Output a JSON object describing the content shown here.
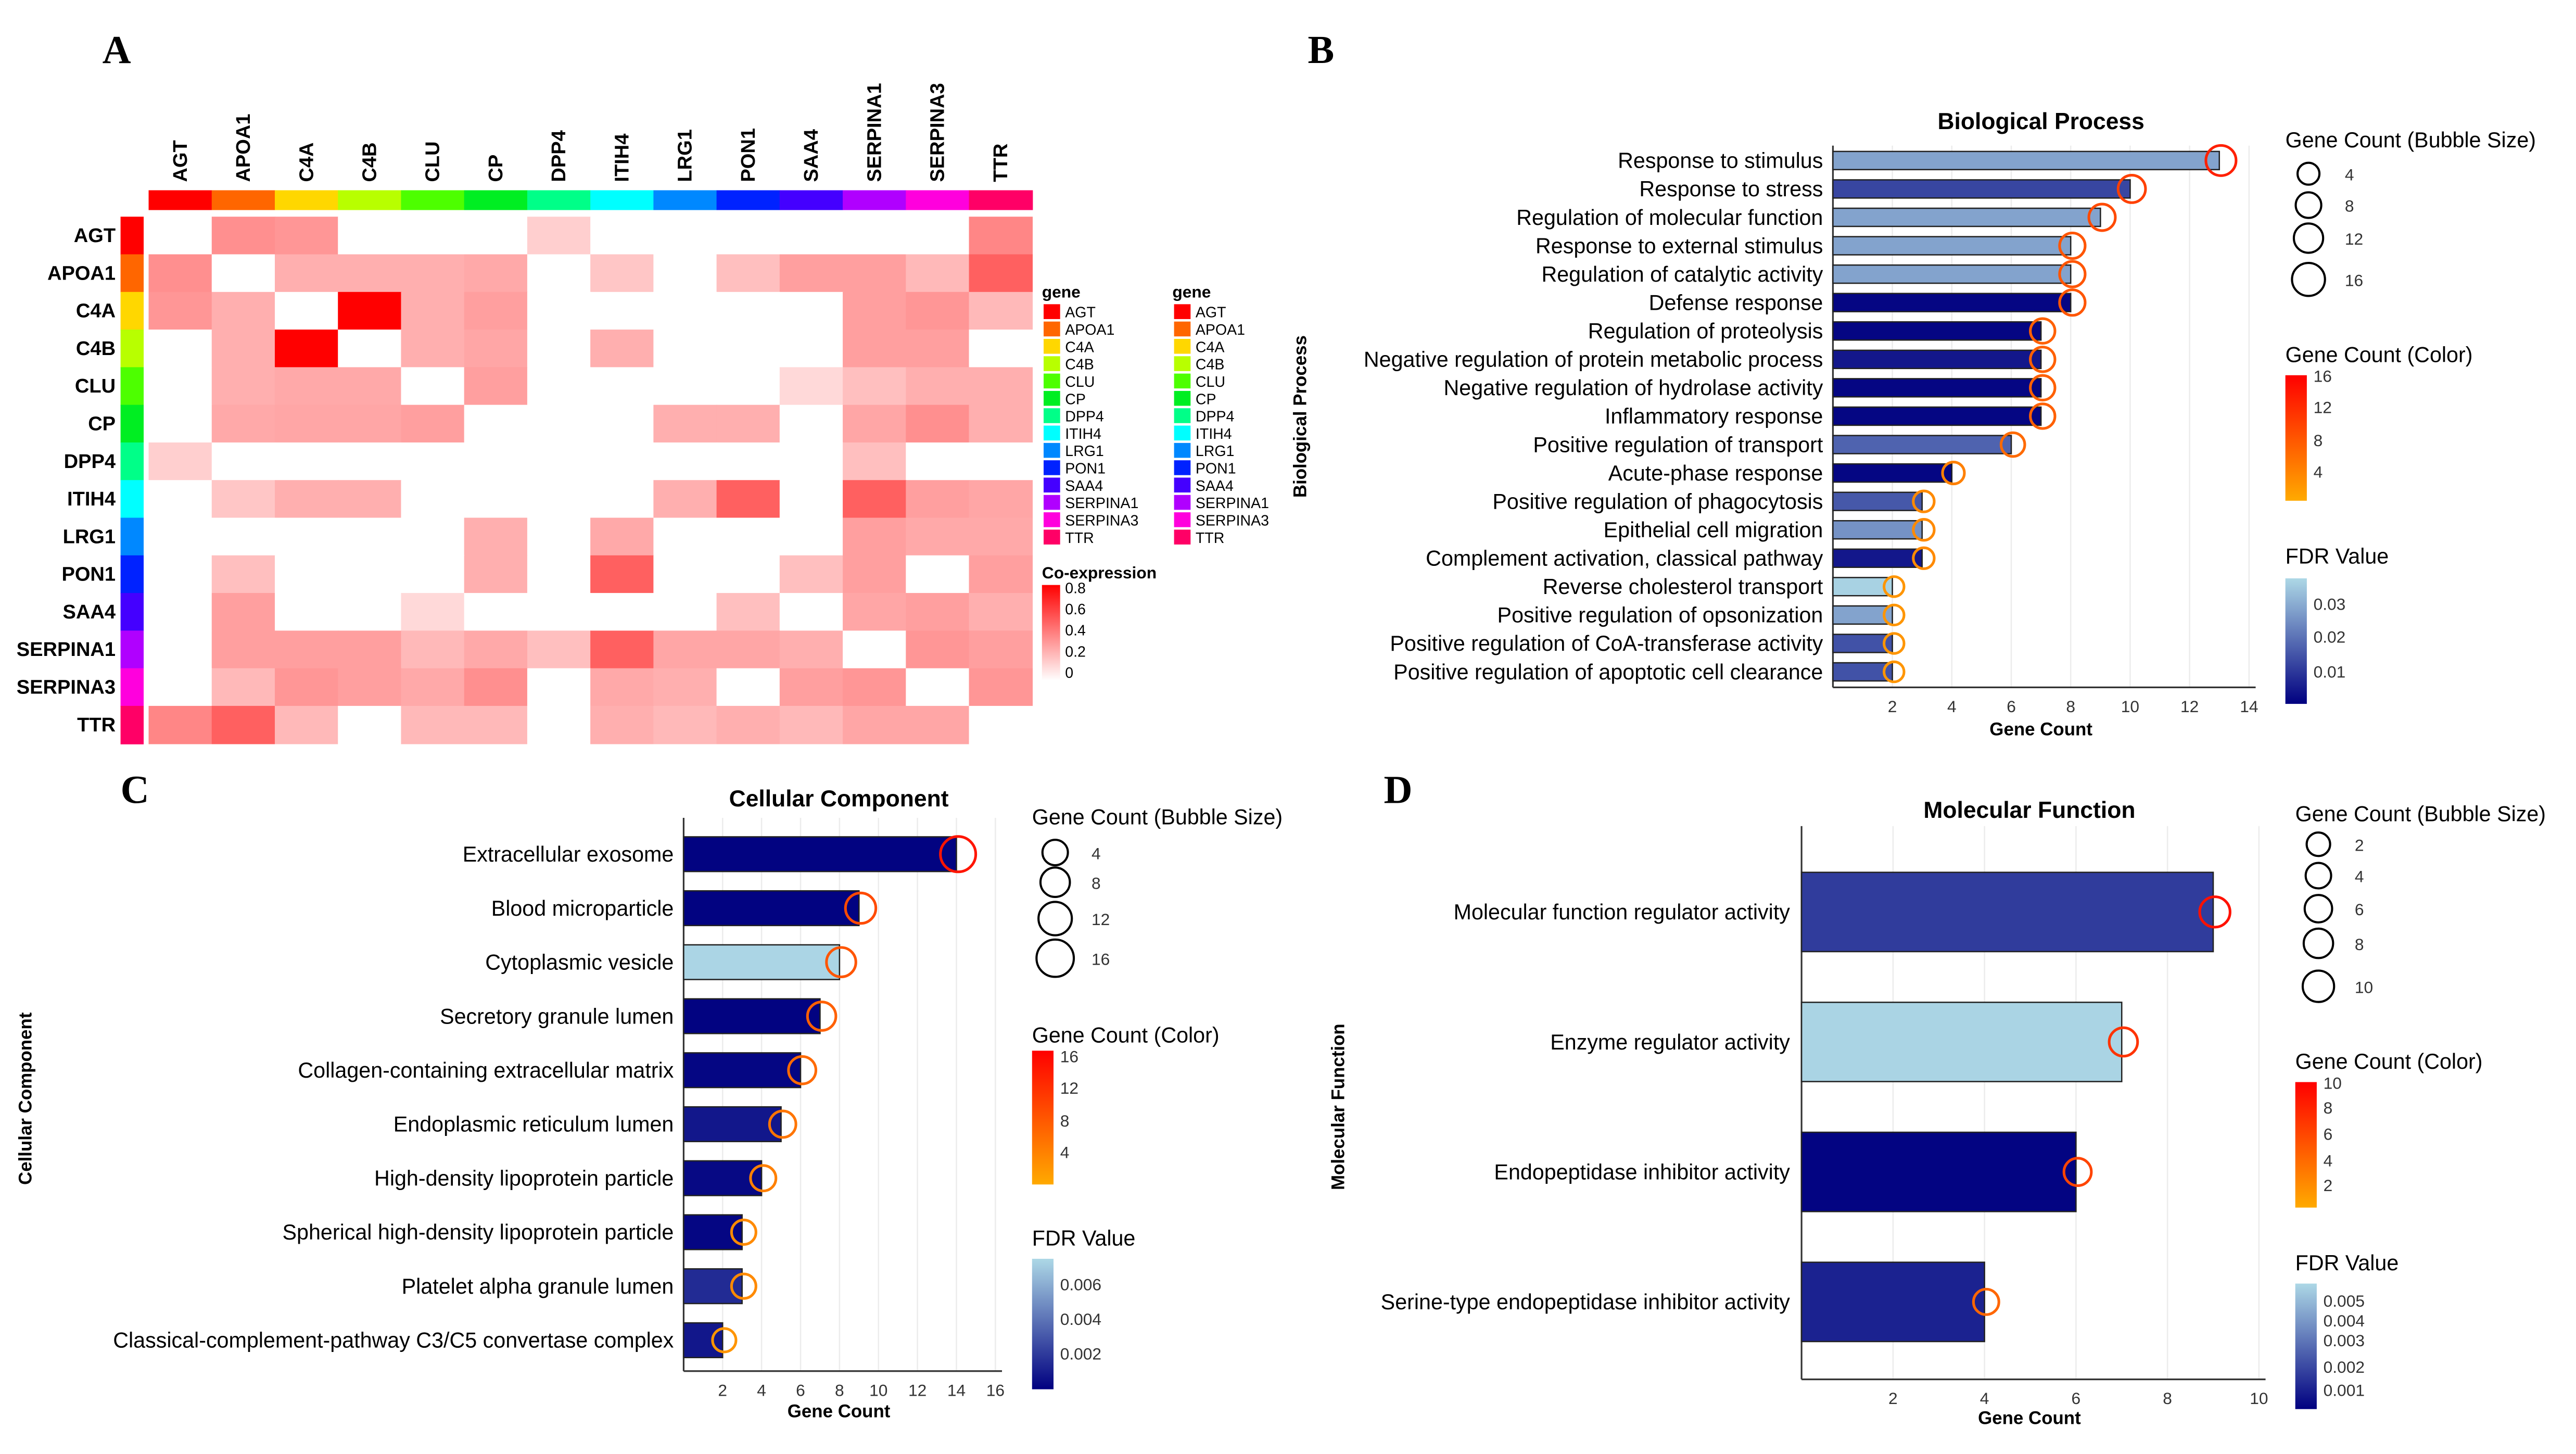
{
  "panels": {
    "a": "A",
    "b": "B",
    "c": "C",
    "d": "D"
  },
  "chart_data": [
    {
      "type": "heatmap",
      "genes": [
        "AGT",
        "APOA1",
        "C4A",
        "C4B",
        "CLU",
        "CP",
        "DPP4",
        "ITIH4",
        "LRG1",
        "PON1",
        "SAA4",
        "SERPINA1",
        "SERPINA3",
        "TTR"
      ],
      "gene_colors": [
        "#ff0000",
        "#ff6600",
        "#ffd700",
        "#b8ff00",
        "#4dff00",
        "#00ee22",
        "#00ff88",
        "#00ffff",
        "#0088ff",
        "#0022ff",
        "#4400ff",
        "#b000ff",
        "#ff00dd",
        "#ff0066"
      ],
      "values": [
        [
          0,
          0.35,
          0.33,
          0,
          0,
          0,
          0.15,
          0,
          0,
          0,
          0,
          0,
          0,
          0.38
        ],
        [
          0.35,
          0,
          0.25,
          0.25,
          0.25,
          0.27,
          0,
          0.18,
          0,
          0.2,
          0.3,
          0.3,
          0.22,
          0.5
        ],
        [
          0.33,
          0.25,
          0,
          0.95,
          0.25,
          0.3,
          0,
          0,
          0,
          0,
          0,
          0.3,
          0.33,
          0.22
        ],
        [
          0,
          0.25,
          0.95,
          0,
          0.25,
          0.28,
          0,
          0.25,
          0,
          0,
          0,
          0.3,
          0.3,
          0
        ],
        [
          0,
          0.25,
          0.27,
          0.27,
          0,
          0.3,
          0,
          0,
          0,
          0,
          0.12,
          0.2,
          0.25,
          0.25
        ],
        [
          0,
          0.27,
          0.28,
          0.28,
          0.3,
          0,
          0,
          0,
          0.25,
          0.25,
          0,
          0.28,
          0.35,
          0.25
        ],
        [
          0.15,
          0,
          0,
          0,
          0,
          0,
          0,
          0,
          0,
          0,
          0,
          0.2,
          0,
          0
        ],
        [
          0,
          0.18,
          0.25,
          0.25,
          0,
          0,
          0,
          0,
          0.25,
          0.5,
          0,
          0.5,
          0.3,
          0.28
        ],
        [
          0,
          0,
          0,
          0,
          0,
          0.25,
          0,
          0.27,
          0,
          0,
          0,
          0.3,
          0.27,
          0.27
        ],
        [
          0,
          0.2,
          0,
          0,
          0,
          0.25,
          0,
          0.5,
          0,
          0,
          0.2,
          0.3,
          0,
          0.3
        ],
        [
          0,
          0.3,
          0,
          0,
          0.12,
          0,
          0,
          0,
          0,
          0.2,
          0,
          0.28,
          0.3,
          0.25
        ],
        [
          0,
          0.3,
          0.3,
          0.3,
          0.22,
          0.27,
          0.2,
          0.5,
          0.28,
          0.28,
          0.25,
          0,
          0.33,
          0.3
        ],
        [
          0,
          0.22,
          0.33,
          0.3,
          0.27,
          0.35,
          0,
          0.27,
          0.25,
          0,
          0.3,
          0.33,
          0,
          0.33
        ],
        [
          0.38,
          0.5,
          0.22,
          0,
          0.22,
          0.22,
          0,
          0.25,
          0.22,
          0.25,
          0.22,
          0.28,
          0.28,
          0
        ]
      ],
      "legend_title": "gene",
      "colorbar_title": "Co-expression",
      "colorbar_ticks": [
        "0.8",
        "0.6",
        "0.4",
        "0.2",
        "0"
      ],
      "range": [
        0,
        0.8
      ]
    },
    {
      "type": "bar",
      "title": "Biological Process",
      "ylabel": "Biological Process",
      "xlabel": "Gene Count",
      "categories": [
        "Response to stimulus",
        "Response to stress",
        "Regulation of molecular function",
        "Response to external stimulus",
        "Regulation of catalytic activity",
        "Defense response",
        "Regulation of proteolysis",
        "Negative regulation of protein metabolic process",
        "Negative regulation of hydrolase activity",
        "Inflammatory response",
        "Positive regulation of transport",
        "Acute-phase response",
        "Positive regulation of phagocytosis",
        "Epithelial cell migration",
        "Complement activation, classical pathway",
        "Reverse cholesterol transport",
        "Positive regulation of opsonization",
        "Positive regulation of CoA-transferase activity",
        "Positive regulation of apoptotic cell clearance"
      ],
      "values": [
        13,
        10,
        9,
        8,
        8,
        8,
        7,
        7,
        7,
        7,
        6,
        4,
        3,
        3,
        3,
        2,
        2,
        2,
        2
      ],
      "fdr": [
        0.028,
        0.012,
        0.028,
        0.028,
        0.028,
        0.001,
        0.001,
        0.004,
        0.001,
        0.001,
        0.017,
        0.001,
        0.015,
        0.025,
        0.004,
        0.036,
        0.028,
        0.014,
        0.014
      ],
      "xticks": [
        "2",
        "4",
        "6",
        "8",
        "10",
        "12",
        "14"
      ],
      "xlim": [
        0,
        14
      ],
      "bubble_title": "Gene Count (Bubble Size)",
      "bubble_values": [
        "4",
        "8",
        "12",
        "16"
      ],
      "color_title": "Gene Count (Color)",
      "color_ticks": [
        "16",
        "12",
        "8",
        "4"
      ],
      "color_max": 16,
      "fdr_title": "FDR Value",
      "fdr_ticks": [
        "0.03",
        "0.02",
        "0.01"
      ],
      "fdr_max": 0.037
    },
    {
      "type": "bar",
      "title": "Cellular Component",
      "ylabel": "Cellular Component",
      "xlabel": "Gene Count",
      "categories": [
        "Extracellular exosome",
        "Blood microparticle",
        "Cytoplasmic vesicle",
        "Secretory granule lumen",
        "Collagen-containing extracellular matrix",
        "Endoplasmic reticulum lumen",
        "High-density lipoprotein particle",
        "Spherical high-density lipoprotein particle",
        "Platelet alpha granule lumen",
        "Classical-complement-pathway C3/C5 convertase complex"
      ],
      "values": [
        14,
        9,
        8,
        7,
        6,
        5,
        4,
        3,
        3,
        2
      ],
      "fdr": [
        0.0001,
        0.0001,
        0.0075,
        0.0001,
        0.0002,
        0.0008,
        0.0003,
        0.0002,
        0.0015,
        0.0008
      ],
      "xticks": [
        "2",
        "4",
        "6",
        "8",
        "10",
        "12",
        "14",
        "16"
      ],
      "xlim": [
        0,
        16
      ],
      "bubble_title": "Gene Count (Bubble Size)",
      "bubble_values": [
        "4",
        "8",
        "12",
        "16"
      ],
      "color_title": "Gene Count (Color)",
      "color_ticks": [
        "16",
        "12",
        "8",
        "4"
      ],
      "color_max": 16,
      "fdr_title": "FDR Value",
      "fdr_ticks": [
        "0.006",
        "0.004",
        "0.002"
      ],
      "fdr_max": 0.0076
    },
    {
      "type": "bar",
      "title": "Molecular Function",
      "ylabel": "Molecular Function",
      "xlabel": "Gene Count",
      "categories": [
        "Molecular function regulator activity",
        "Enzyme regulator activity",
        "Endopeptidase inhibitor activity",
        "Serine-type endopeptidase inhibitor activity"
      ],
      "values": [
        9,
        7,
        6,
        4
      ],
      "fdr": [
        0.0016,
        0.0057,
        0.0001,
        0.0009
      ],
      "xticks": [
        "2",
        "4",
        "6",
        "8",
        "10"
      ],
      "xlim": [
        0,
        10
      ],
      "bubble_title": "Gene Count (Bubble Size)",
      "bubble_values": [
        "2",
        "4",
        "6",
        "8",
        "10"
      ],
      "color_title": "Gene Count (Color)",
      "color_ticks": [
        "10",
        "8",
        "6",
        "4",
        "2"
      ],
      "color_max": 10,
      "fdr_title": "FDR Value",
      "fdr_ticks": [
        "0.005",
        "0.004",
        "0.003",
        "0.002",
        "0.001"
      ],
      "fdr_max": 0.0058
    }
  ]
}
